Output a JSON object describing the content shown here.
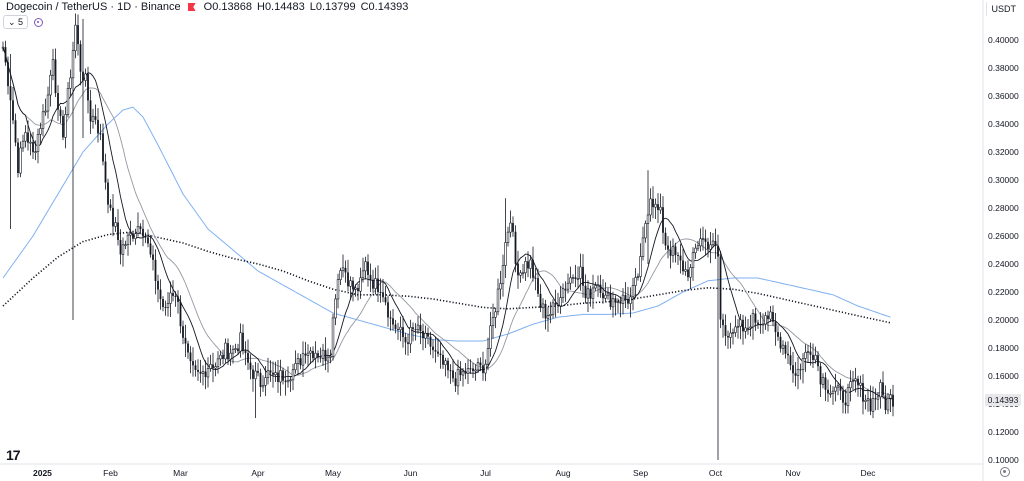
{
  "header": {
    "title": "Dogecoin / TetherUS · 1D · Binance",
    "open": "O0.13868",
    "high": "H0.14483",
    "low": "L0.13799",
    "close": "C0.14393",
    "indicator_label": "5",
    "currency": "USDT",
    "last_price": "0.14393"
  },
  "colors": {
    "candle": "#131722",
    "ma_short": "#131722",
    "ma_medium": "#9598a1",
    "ma_long": "#7fb0f0",
    "ma_dotted": "#131722",
    "flag": "#f23645",
    "gear": "#787b86"
  },
  "icons": [
    "flag-icon",
    "eye-icon",
    "tradingview-logo-icon",
    "settings-gear-icon"
  ],
  "chart_data": {
    "type": "candlestick",
    "title": "",
    "y_axis_ticks": [
      "0.40000",
      "0.38000",
      "0.36000",
      "0.34000",
      "0.32000",
      "0.30000",
      "0.28000",
      "0.26000",
      "0.24000",
      "0.22000",
      "0.20000",
      "0.18000",
      "0.16000",
      "0.14000",
      "0.12000",
      "0.10000"
    ],
    "ylim": [
      0.098,
      0.41
    ],
    "x_axis_ticks": [
      {
        "label": "2025",
        "day": 0
      },
      {
        "label": "Feb",
        "day": 31
      },
      {
        "label": "Mar",
        "day": 59
      },
      {
        "label": "Apr",
        "day": 90
      },
      {
        "label": "May",
        "day": 120
      },
      {
        "label": "Jun",
        "day": 151
      },
      {
        "label": "Jul",
        "day": 181
      },
      {
        "label": "Aug",
        "day": 212
      },
      {
        "label": "Sep",
        "day": 243
      },
      {
        "label": "Oct",
        "day": 273
      },
      {
        "label": "Nov",
        "day": 304
      },
      {
        "label": "Dec",
        "day": 334
      }
    ],
    "x_range_days": [
      -12,
      344
    ],
    "close_anchors": [
      [
        -12,
        0.395
      ],
      [
        -9,
        0.36
      ],
      [
        -6,
        0.31
      ],
      [
        -3,
        0.335
      ],
      [
        0,
        0.318
      ],
      [
        3,
        0.34
      ],
      [
        6,
        0.36
      ],
      [
        8,
        0.39
      ],
      [
        10,
        0.345
      ],
      [
        12,
        0.335
      ],
      [
        14,
        0.36
      ],
      [
        17,
        0.41
      ],
      [
        19,
        0.38
      ],
      [
        21,
        0.37
      ],
      [
        23,
        0.345
      ],
      [
        25,
        0.345
      ],
      [
        27,
        0.33
      ],
      [
        29,
        0.3
      ],
      [
        31,
        0.275
      ],
      [
        33,
        0.265
      ],
      [
        35,
        0.25
      ],
      [
        37,
        0.255
      ],
      [
        39,
        0.26
      ],
      [
        41,
        0.265
      ],
      [
        43,
        0.27
      ],
      [
        45,
        0.26
      ],
      [
        47,
        0.245
      ],
      [
        49,
        0.23
      ],
      [
        51,
        0.215
      ],
      [
        53,
        0.205
      ],
      [
        55,
        0.22
      ],
      [
        57,
        0.22
      ],
      [
        59,
        0.2
      ],
      [
        61,
        0.18
      ],
      [
        63,
        0.165
      ],
      [
        65,
        0.16
      ],
      [
        67,
        0.16
      ],
      [
        69,
        0.165
      ],
      [
        71,
        0.17
      ],
      [
        73,
        0.168
      ],
      [
        75,
        0.172
      ],
      [
        77,
        0.178
      ],
      [
        80,
        0.178
      ],
      [
        83,
        0.185
      ],
      [
        85,
        0.172
      ],
      [
        87,
        0.165
      ],
      [
        89,
        0.16
      ],
      [
        91,
        0.155
      ],
      [
        93,
        0.163
      ],
      [
        95,
        0.16
      ],
      [
        97,
        0.158
      ],
      [
        99,
        0.16
      ],
      [
        102,
        0.162
      ],
      [
        105,
        0.165
      ],
      [
        107,
        0.172
      ],
      [
        109,
        0.18
      ],
      [
        111,
        0.178
      ],
      [
        113,
        0.178
      ],
      [
        115,
        0.175
      ],
      [
        117,
        0.175
      ],
      [
        119,
        0.18
      ],
      [
        121,
        0.22
      ],
      [
        123,
        0.24
      ],
      [
        125,
        0.235
      ],
      [
        127,
        0.225
      ],
      [
        129,
        0.22
      ],
      [
        131,
        0.225
      ],
      [
        133,
        0.24
      ],
      [
        135,
        0.23
      ],
      [
        137,
        0.225
      ],
      [
        139,
        0.225
      ],
      [
        141,
        0.215
      ],
      [
        143,
        0.2
      ],
      [
        145,
        0.195
      ],
      [
        147,
        0.19
      ],
      [
        149,
        0.185
      ],
      [
        151,
        0.19
      ],
      [
        153,
        0.193
      ],
      [
        155,
        0.19
      ],
      [
        157,
        0.185
      ],
      [
        159,
        0.182
      ],
      [
        161,
        0.175
      ],
      [
        163,
        0.17
      ],
      [
        165,
        0.165
      ],
      [
        167,
        0.16
      ],
      [
        169,
        0.158
      ],
      [
        171,
        0.16
      ],
      [
        173,
        0.163
      ],
      [
        175,
        0.162
      ],
      [
        177,
        0.165
      ],
      [
        179,
        0.165
      ],
      [
        181,
        0.17
      ],
      [
        183,
        0.19
      ],
      [
        185,
        0.21
      ],
      [
        187,
        0.23
      ],
      [
        189,
        0.255
      ],
      [
        191,
        0.275
      ],
      [
        193,
        0.24
      ],
      [
        195,
        0.235
      ],
      [
        197,
        0.24
      ],
      [
        199,
        0.24
      ],
      [
        201,
        0.225
      ],
      [
        203,
        0.21
      ],
      [
        205,
        0.205
      ],
      [
        207,
        0.205
      ],
      [
        209,
        0.21
      ],
      [
        211,
        0.22
      ],
      [
        213,
        0.225
      ],
      [
        215,
        0.23
      ],
      [
        217,
        0.235
      ],
      [
        219,
        0.235
      ],
      [
        221,
        0.215
      ],
      [
        223,
        0.22
      ],
      [
        225,
        0.228
      ],
      [
        227,
        0.225
      ],
      [
        229,
        0.215
      ],
      [
        231,
        0.215
      ],
      [
        233,
        0.215
      ],
      [
        235,
        0.215
      ],
      [
        237,
        0.215
      ],
      [
        239,
        0.215
      ],
      [
        241,
        0.225
      ],
      [
        243,
        0.24
      ],
      [
        245,
        0.27
      ],
      [
        247,
        0.29
      ],
      [
        249,
        0.28
      ],
      [
        251,
        0.275
      ],
      [
        253,
        0.255
      ],
      [
        255,
        0.25
      ],
      [
        257,
        0.245
      ],
      [
        259,
        0.24
      ],
      [
        261,
        0.235
      ],
      [
        263,
        0.235
      ],
      [
        265,
        0.25
      ],
      [
        267,
        0.26
      ],
      [
        269,
        0.255
      ],
      [
        271,
        0.255
      ],
      [
        273,
        0.25
      ],
      [
        274,
        0.245
      ],
      [
        275,
        0.2
      ],
      [
        277,
        0.19
      ],
      [
        279,
        0.195
      ],
      [
        281,
        0.19
      ],
      [
        283,
        0.195
      ],
      [
        285,
        0.19
      ],
      [
        287,
        0.2
      ],
      [
        289,
        0.2
      ],
      [
        291,
        0.2
      ],
      [
        293,
        0.205
      ],
      [
        295,
        0.2
      ],
      [
        297,
        0.19
      ],
      [
        299,
        0.185
      ],
      [
        301,
        0.18
      ],
      [
        303,
        0.17
      ],
      [
        305,
        0.16
      ],
      [
        307,
        0.168
      ],
      [
        309,
        0.175
      ],
      [
        311,
        0.18
      ],
      [
        313,
        0.175
      ],
      [
        315,
        0.16
      ],
      [
        317,
        0.155
      ],
      [
        319,
        0.15
      ],
      [
        321,
        0.15
      ],
      [
        323,
        0.145
      ],
      [
        325,
        0.145
      ],
      [
        327,
        0.15
      ],
      [
        329,
        0.155
      ],
      [
        331,
        0.15
      ],
      [
        333,
        0.145
      ],
      [
        335,
        0.14
      ],
      [
        337,
        0.145
      ],
      [
        339,
        0.15
      ],
      [
        341,
        0.14
      ],
      [
        343,
        0.144
      ]
    ],
    "special_wicks": [
      {
        "day": 20,
        "high": 0.415,
        "low": 0.33
      },
      {
        "day": -9,
        "high": 0.39,
        "low": 0.265
      },
      {
        "day": 16,
        "high": 0.345,
        "low": 0.2
      },
      {
        "day": 89,
        "high": 0.17,
        "low": 0.13
      },
      {
        "day": 274,
        "high": 0.255,
        "low": 0.1
      },
      {
        "day": 246,
        "high": 0.307,
        "low": 0.24
      },
      {
        "day": 189,
        "high": 0.287,
        "low": 0.23
      }
    ],
    "ma_long_anchors": [
      [
        -12,
        0.23
      ],
      [
        0,
        0.26
      ],
      [
        10,
        0.29
      ],
      [
        20,
        0.32
      ],
      [
        30,
        0.34
      ],
      [
        36,
        0.35
      ],
      [
        40,
        0.352
      ],
      [
        44,
        0.345
      ],
      [
        50,
        0.325
      ],
      [
        60,
        0.29
      ],
      [
        70,
        0.265
      ],
      [
        80,
        0.25
      ],
      [
        90,
        0.235
      ],
      [
        100,
        0.225
      ],
      [
        110,
        0.215
      ],
      [
        120,
        0.205
      ],
      [
        130,
        0.2
      ],
      [
        140,
        0.195
      ],
      [
        150,
        0.19
      ],
      [
        160,
        0.186
      ],
      [
        170,
        0.185
      ],
      [
        180,
        0.185
      ],
      [
        190,
        0.19
      ],
      [
        200,
        0.197
      ],
      [
        210,
        0.202
      ],
      [
        220,
        0.204
      ],
      [
        230,
        0.204
      ],
      [
        240,
        0.205
      ],
      [
        250,
        0.21
      ],
      [
        260,
        0.22
      ],
      [
        270,
        0.228
      ],
      [
        280,
        0.23
      ],
      [
        290,
        0.23
      ],
      [
        300,
        0.226
      ],
      [
        310,
        0.222
      ],
      [
        320,
        0.218
      ],
      [
        330,
        0.21
      ],
      [
        343,
        0.202
      ]
    ],
    "ma_dotted_anchors": [
      [
        -12,
        0.21
      ],
      [
        0,
        0.23
      ],
      [
        10,
        0.245
      ],
      [
        20,
        0.256
      ],
      [
        30,
        0.261
      ],
      [
        40,
        0.263
      ],
      [
        50,
        0.259
      ],
      [
        60,
        0.255
      ],
      [
        70,
        0.249
      ],
      [
        80,
        0.244
      ],
      [
        90,
        0.24
      ],
      [
        100,
        0.235
      ],
      [
        110,
        0.228
      ],
      [
        120,
        0.222
      ],
      [
        130,
        0.218
      ],
      [
        140,
        0.218
      ],
      [
        150,
        0.217
      ],
      [
        160,
        0.215
      ],
      [
        170,
        0.212
      ],
      [
        180,
        0.209
      ],
      [
        190,
        0.208
      ],
      [
        200,
        0.209
      ],
      [
        210,
        0.21
      ],
      [
        220,
        0.212
      ],
      [
        230,
        0.213
      ],
      [
        240,
        0.215
      ],
      [
        250,
        0.218
      ],
      [
        260,
        0.221
      ],
      [
        270,
        0.223
      ],
      [
        280,
        0.222
      ],
      [
        290,
        0.219
      ],
      [
        300,
        0.215
      ],
      [
        310,
        0.211
      ],
      [
        320,
        0.207
      ],
      [
        330,
        0.203
      ],
      [
        343,
        0.198
      ]
    ],
    "grid": false,
    "legend": "none"
  }
}
